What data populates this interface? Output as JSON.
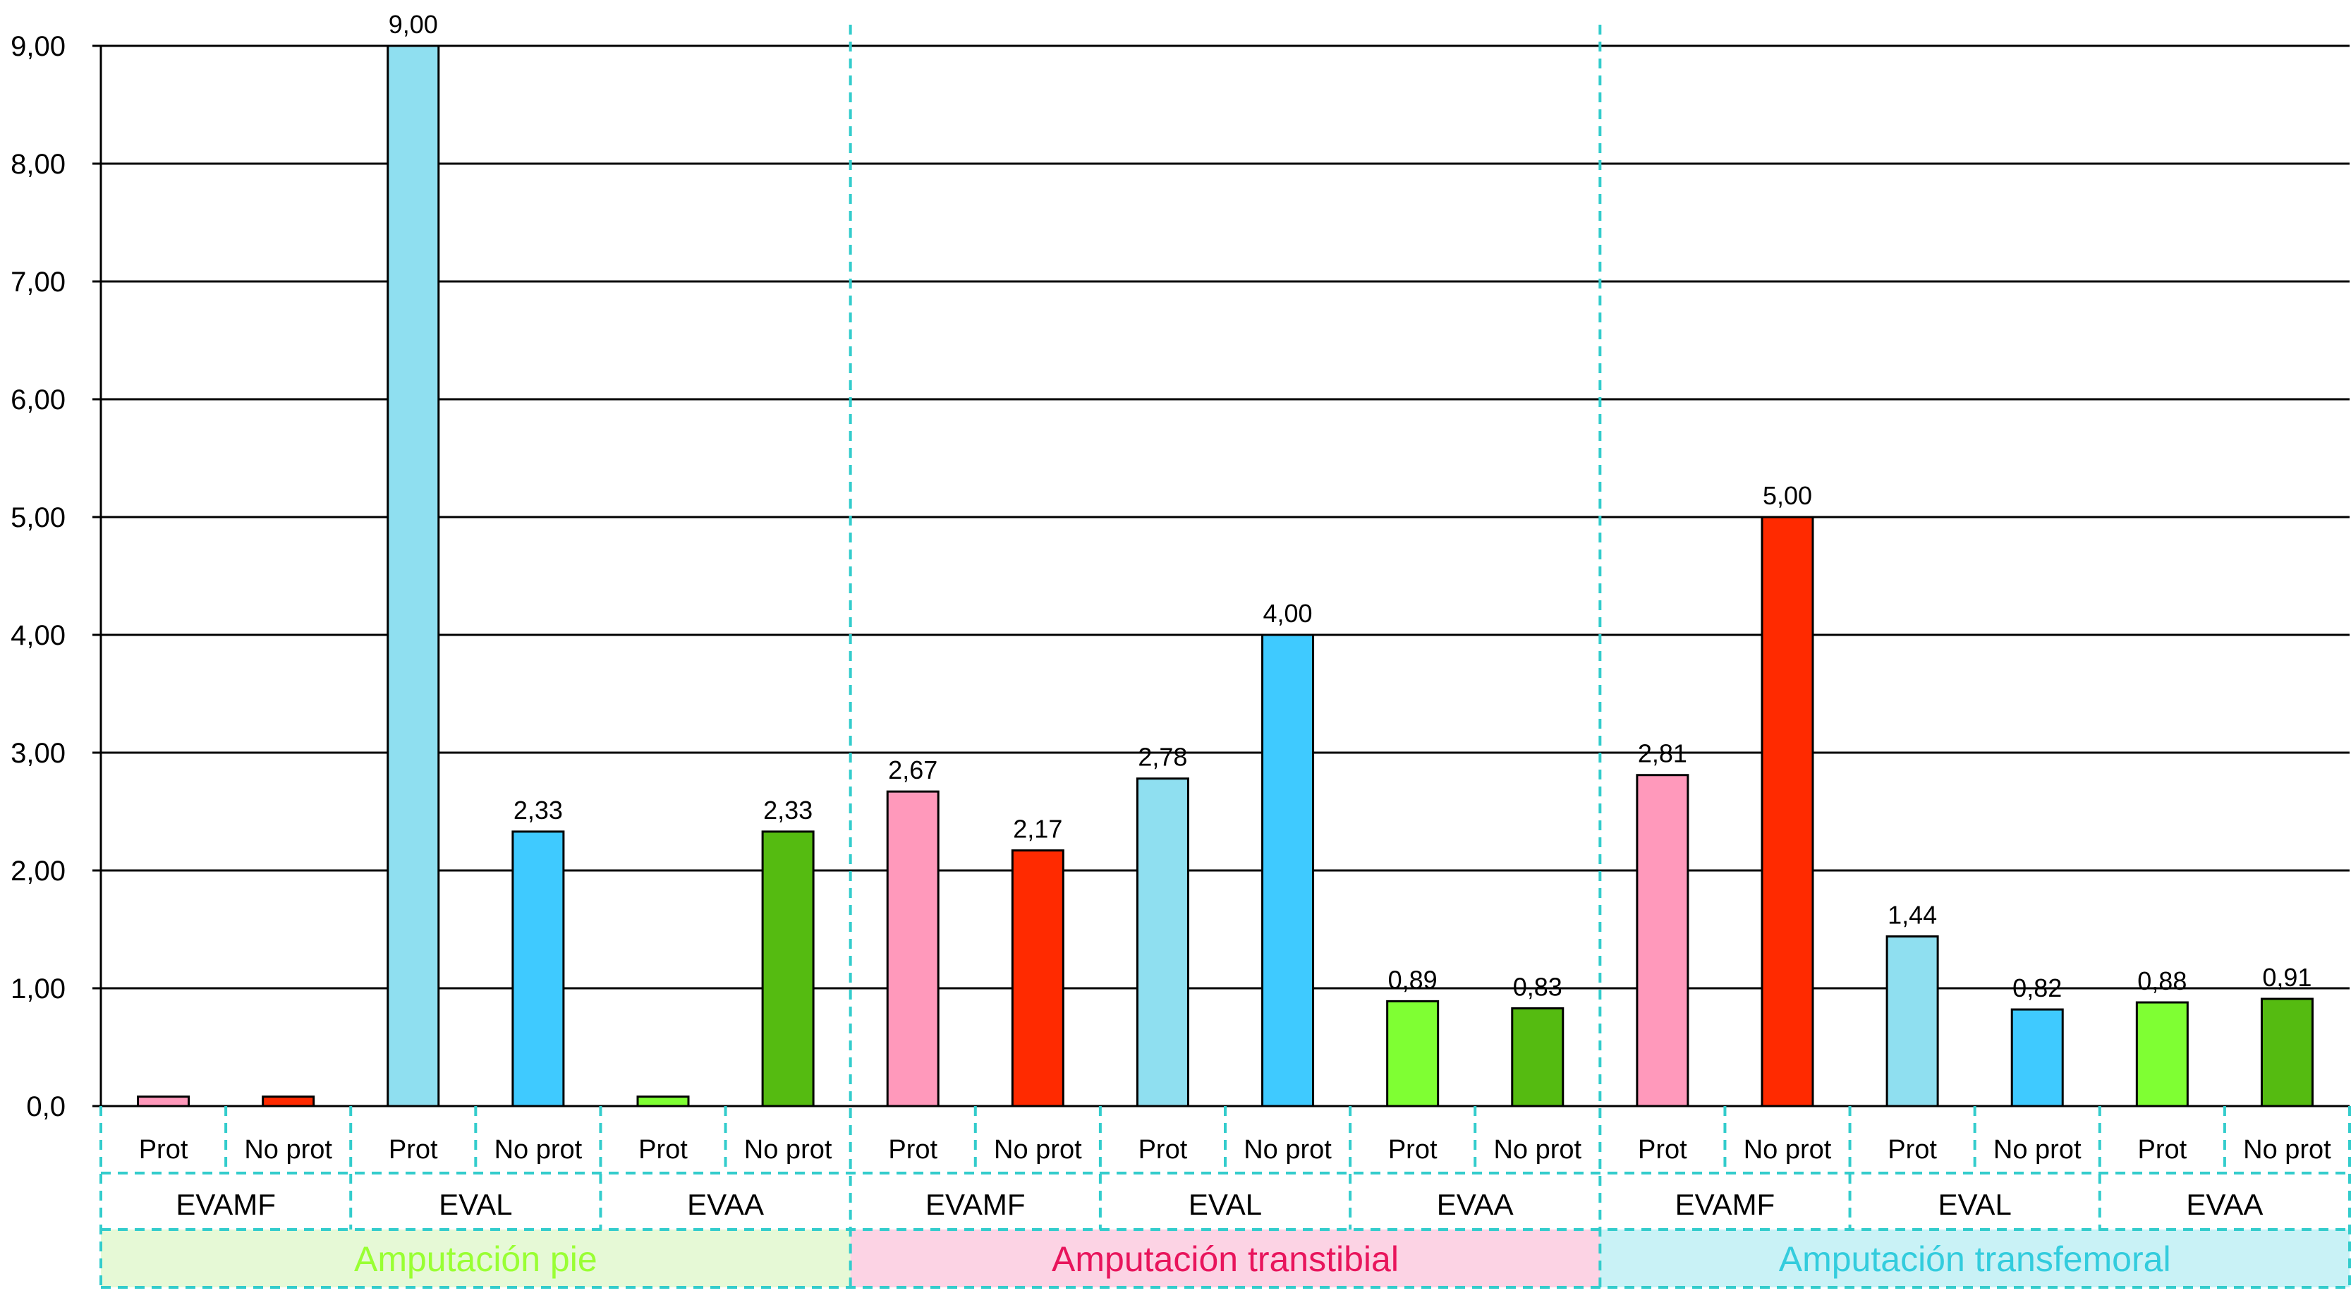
{
  "chart_data": {
    "type": "bar",
    "ylim": [
      0,
      9
    ],
    "y_ticks": [
      "0,0",
      "1,00",
      "2,00",
      "3,00",
      "4,00",
      "5,00",
      "6,00",
      "7,00",
      "8,00",
      "9,00"
    ],
    "grid": true,
    "conditions": [
      "Prot",
      "No prot"
    ],
    "scales": [
      "EVAMF",
      "EVAL",
      "EVAA"
    ],
    "groups": [
      {
        "name": "Amputación pie",
        "text_color": "#99ff33",
        "bg_color": "#e6f9d6",
        "scales": [
          {
            "name": "EVAMF",
            "values": [
              0.08,
              0.08
            ],
            "labels": [
              "",
              ""
            ],
            "colors": [
              "#ff99bb",
              "#ff2a00"
            ]
          },
          {
            "name": "EVAL",
            "values": [
              9.0,
              2.33
            ],
            "labels": [
              "9,00",
              "2,33"
            ],
            "colors": [
              "#8fdff0",
              "#3fcaff"
            ]
          },
          {
            "name": "EVAA",
            "values": [
              0.08,
              2.33
            ],
            "labels": [
              "",
              "2,33"
            ],
            "colors": [
              "#7fff33",
              "#55bb11"
            ]
          }
        ]
      },
      {
        "name": "Amputación transtibial",
        "text_color": "#e8155c",
        "bg_color": "#fcd3e4",
        "scales": [
          {
            "name": "EVAMF",
            "values": [
              2.67,
              2.17
            ],
            "labels": [
              "2,67",
              "2,17"
            ],
            "colors": [
              "#ff99bb",
              "#ff2a00"
            ]
          },
          {
            "name": "EVAL",
            "values": [
              2.78,
              4.0
            ],
            "labels": [
              "2,78",
              "4,00"
            ],
            "colors": [
              "#8fdff0",
              "#3fcaff"
            ]
          },
          {
            "name": "EVAA",
            "values": [
              0.89,
              0.83
            ],
            "labels": [
              "0,89",
              "0,83"
            ],
            "colors": [
              "#7fff33",
              "#55bb11"
            ]
          }
        ]
      },
      {
        "name": "Amputación transfemoral",
        "text_color": "#33ccdd",
        "bg_color": "#c9f2f6",
        "scales": [
          {
            "name": "EVAMF",
            "values": [
              2.81,
              5.0
            ],
            "labels": [
              "2,81",
              "5,00"
            ],
            "colors": [
              "#ff99bb",
              "#ff2a00"
            ]
          },
          {
            "name": "EVAL",
            "values": [
              1.44,
              0.82
            ],
            "labels": [
              "1,44",
              "0,82"
            ],
            "colors": [
              "#8fdff0",
              "#3fcaff"
            ]
          },
          {
            "name": "EVAA",
            "values": [
              0.88,
              0.91
            ],
            "labels": [
              "0,88",
              "0,91"
            ],
            "colors": [
              "#7fff33",
              "#55bb11"
            ]
          }
        ]
      }
    ]
  }
}
